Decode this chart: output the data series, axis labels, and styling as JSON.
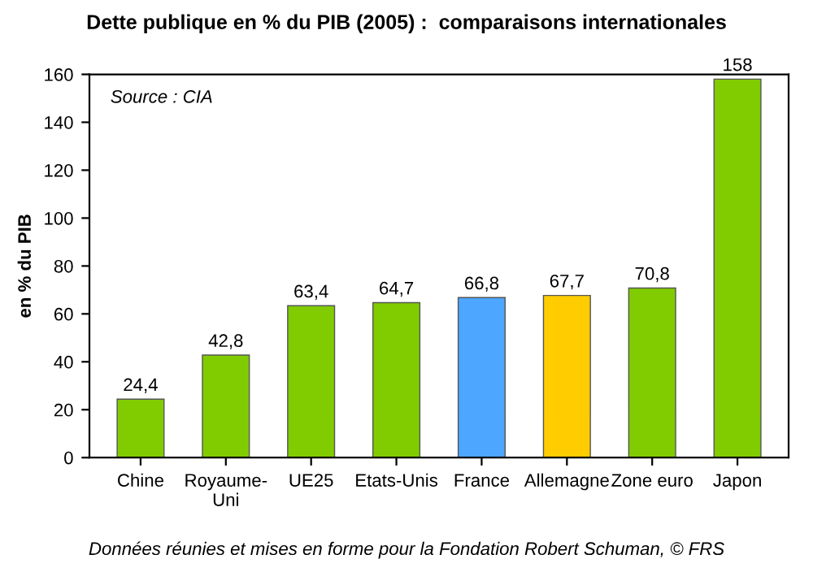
{
  "chart_data": {
    "type": "bar",
    "title": "Dette publique en % du PIB (2005) :  comparaisons internationales",
    "ylabel": "en % du PIB",
    "categories": [
      "Chine",
      "Royaume-\nUni",
      "UE25",
      "Etats-Unis",
      "France",
      "Allemagne",
      "Zone euro",
      "Japon"
    ],
    "values": [
      24.4,
      42.8,
      63.4,
      64.7,
      66.8,
      67.7,
      70.8,
      158
    ],
    "value_labels": [
      "24,4",
      "42,8",
      "63,4",
      "64,7",
      "66,8",
      "67,7",
      "70,8",
      "158"
    ],
    "colors": [
      "#80cc00",
      "#80cc00",
      "#80cc00",
      "#80cc00",
      "#4da6ff",
      "#ffcc00",
      "#80cc00",
      "#80cc00"
    ],
    "ylim": [
      0,
      160
    ],
    "yticks": [
      0,
      20,
      40,
      60,
      80,
      100,
      120,
      140,
      160
    ],
    "grid": false,
    "annotations": [
      "Source : CIA",
      "Données réunies et mises en forme pour la Fondation Robert Schuman, © FRS"
    ]
  }
}
